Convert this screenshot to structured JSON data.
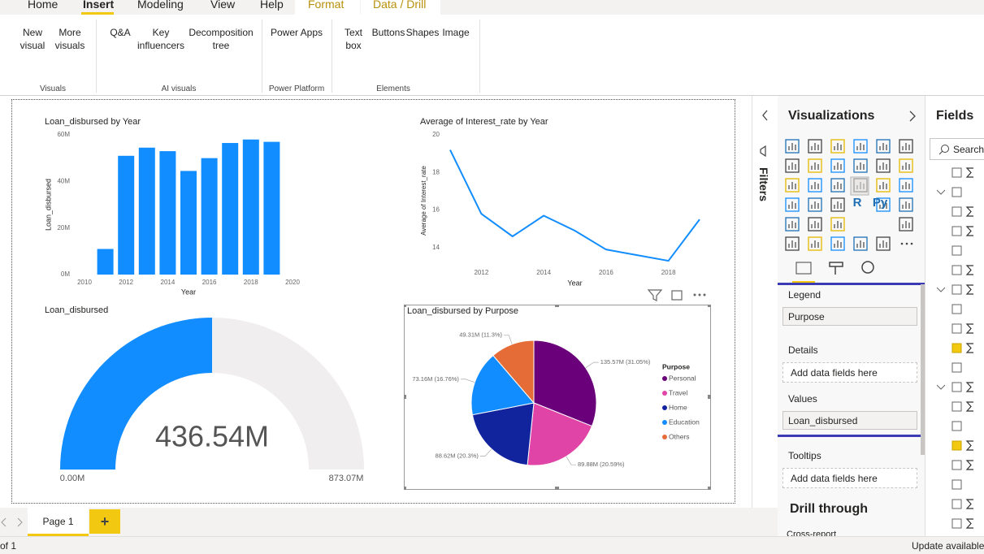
{
  "ribbon": {
    "tabs": [
      "Home",
      "Insert",
      "Modeling",
      "View",
      "Help",
      "Format",
      "Data / Drill"
    ],
    "groups": [
      {
        "label": "Visuals",
        "buttons": [
          "New visual",
          "More visuals"
        ]
      },
      {
        "label": "AI visuals",
        "buttons": [
          "Q&A",
          "Key influencers",
          "Decomposition tree"
        ]
      },
      {
        "label": "Power Platform",
        "buttons": [
          "Power Apps"
        ]
      },
      {
        "label": "Elements",
        "buttons": [
          "Text box",
          "Buttons",
          "Shapes",
          "Image"
        ]
      }
    ]
  },
  "chart_data": [
    {
      "type": "bar",
      "title": "Loan_disbursed by Year",
      "x_label": "Year",
      "y_label": "Loan_disbursed",
      "x": [
        2011,
        2012,
        2013,
        2014,
        2015,
        2016,
        2017,
        2018,
        2019
      ],
      "values": [
        11,
        51,
        54.5,
        53,
        44.5,
        50,
        56.5,
        58,
        57
      ],
      "color": "#118DFF",
      "xlim": [
        2010,
        2020
      ],
      "xticks": [
        2010,
        2012,
        2014,
        2016,
        2018,
        2020
      ],
      "ylim": [
        0,
        60
      ],
      "yticks": [
        {
          "value": 0,
          "label": "0M"
        },
        {
          "value": 20,
          "label": "20M"
        },
        {
          "value": 40,
          "label": "40M"
        },
        {
          "value": 60,
          "label": "60M"
        }
      ]
    },
    {
      "type": "line",
      "title": "Average of Interest_rate by Year",
      "x_label": "Year",
      "y_label": "Average of Interest_rate",
      "x": [
        2011,
        2012,
        2013,
        2014,
        2015,
        2016,
        2017,
        2018,
        2019
      ],
      "values": [
        19.2,
        15.8,
        14.6,
        15.7,
        14.9,
        13.9,
        13.6,
        13.3,
        15.5
      ],
      "color": "#118DFF",
      "xlim": [
        2011,
        2019
      ],
      "xticks": [
        2012,
        2014,
        2016,
        2018
      ],
      "ylim": [
        13,
        20
      ],
      "yticks": [
        14,
        16,
        18,
        20
      ]
    },
    {
      "type": "gauge",
      "title": "Loan_disbursed",
      "value": 436.54,
      "value_label": "436.54M",
      "min": 0,
      "min_label": "0.00M",
      "max": 873.07,
      "max_label": "873.07M",
      "color": "#118DFF"
    },
    {
      "type": "pie",
      "title": "Loan_disbursed by Purpose",
      "legend_title": "Purpose",
      "legend": "right",
      "categories": [
        "Personal",
        "Travel",
        "Home",
        "Education",
        "Others"
      ],
      "values": [
        135.57,
        89.88,
        88.62,
        73.16,
        49.31
      ],
      "value_labels": [
        "135.57M (31.05%)",
        "89.88M (20.59%)",
        "88.62M (20.3%)",
        "73.16M (16.76%)",
        "49.31M (11.3%)"
      ],
      "colors": [
        "#6B007B",
        "#E044A7",
        "#12239E",
        "#118DFF",
        "#E66C37"
      ]
    }
  ],
  "filters_pane": {
    "title": "Filters"
  },
  "visualizations_pane": {
    "title": "Visualizations",
    "icon_texts": [
      "R",
      "Py"
    ],
    "wells": [
      {
        "label": "Legend",
        "field": "Purpose"
      },
      {
        "label": "Details",
        "placeholder": "Add data fields here"
      },
      {
        "label": "Values",
        "field": "Loan_disbursed"
      },
      {
        "label": "Tooltips",
        "placeholder": "Add data fields here"
      }
    ],
    "drill_through": {
      "title": "Drill through",
      "cross_report": "Cross-report"
    }
  },
  "fields_pane": {
    "title": "Fields",
    "search_placeholder": "Search"
  },
  "page_tabs": {
    "tabs": [
      "Page 1"
    ],
    "add": "+"
  },
  "status_bar": {
    "page_count": "of 1",
    "update": "Update available"
  }
}
